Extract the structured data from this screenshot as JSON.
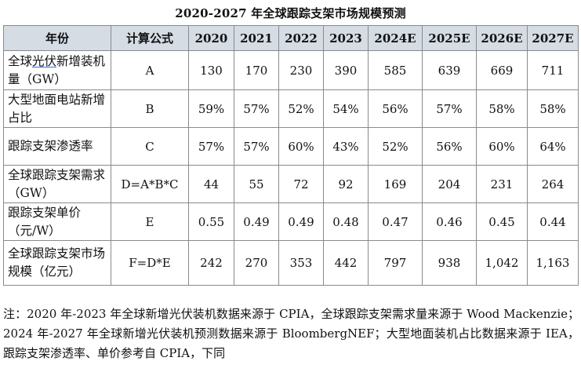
{
  "title": "2020-2027 年全球跟踪支架市场规模预测",
  "table": {
    "headers": [
      "年份",
      "计算公式",
      "2020",
      "2021",
      "2022",
      "2023",
      "2024E",
      "2025E",
      "2026E",
      "2027E"
    ],
    "rows": [
      {
        "label_pre": "全球",
        "label_hl": "光伏",
        "label_post": "新增装机量（GW）",
        "formula": "A",
        "values": [
          "130",
          "170",
          "230",
          "390",
          "585",
          "639",
          "669",
          "711"
        ]
      },
      {
        "label_pre": "大型地面电站新增占比",
        "label_hl": "",
        "label_post": "",
        "formula": "B",
        "values": [
          "59%",
          "57%",
          "52%",
          "54%",
          "56%",
          "57%",
          "58%",
          "58%"
        ]
      },
      {
        "label_pre": "跟踪支架渗透率",
        "label_hl": "",
        "label_post": "",
        "formula": "C",
        "values": [
          "57%",
          "57%",
          "60%",
          "43%",
          "52%",
          "56%",
          "60%",
          "64%"
        ]
      },
      {
        "label_pre": "全球跟踪支架需求（GW）",
        "label_hl": "",
        "label_post": "",
        "formula": "D=A*B*C",
        "values": [
          "44",
          "55",
          "72",
          "92",
          "169",
          "204",
          "231",
          "264"
        ]
      },
      {
        "label_pre": "跟踪支架单价（元/W）",
        "label_hl": "",
        "label_post": "",
        "formula": "E",
        "values": [
          "0.55",
          "0.49",
          "0.49",
          "0.48",
          "0.47",
          "0.46",
          "0.45",
          "0.44"
        ]
      },
      {
        "label_pre": "全球跟踪支架市场规模（亿元）",
        "label_hl": "",
        "label_post": "",
        "formula": "F=D*E",
        "values": [
          "242",
          "270",
          "353",
          "442",
          "797",
          "938",
          "1,042",
          "1,163"
        ]
      }
    ]
  },
  "note": "注：2020 年-2023 年全球新增光伏装机数据来源于 CPIA，全球跟踪支架需求量来源于 Wood Mackenzie；2024 年-2027 年全球新增光伏装机预测数据来源于 BloombergNEF；大型地面装机占比数据来源于 IEA，跟踪支架渗透率、单价参考自 CPIA，下同",
  "colors": {
    "header_bg": "#d5dce4",
    "border": "#8a8a8a",
    "underline": "#3a6fd8"
  }
}
